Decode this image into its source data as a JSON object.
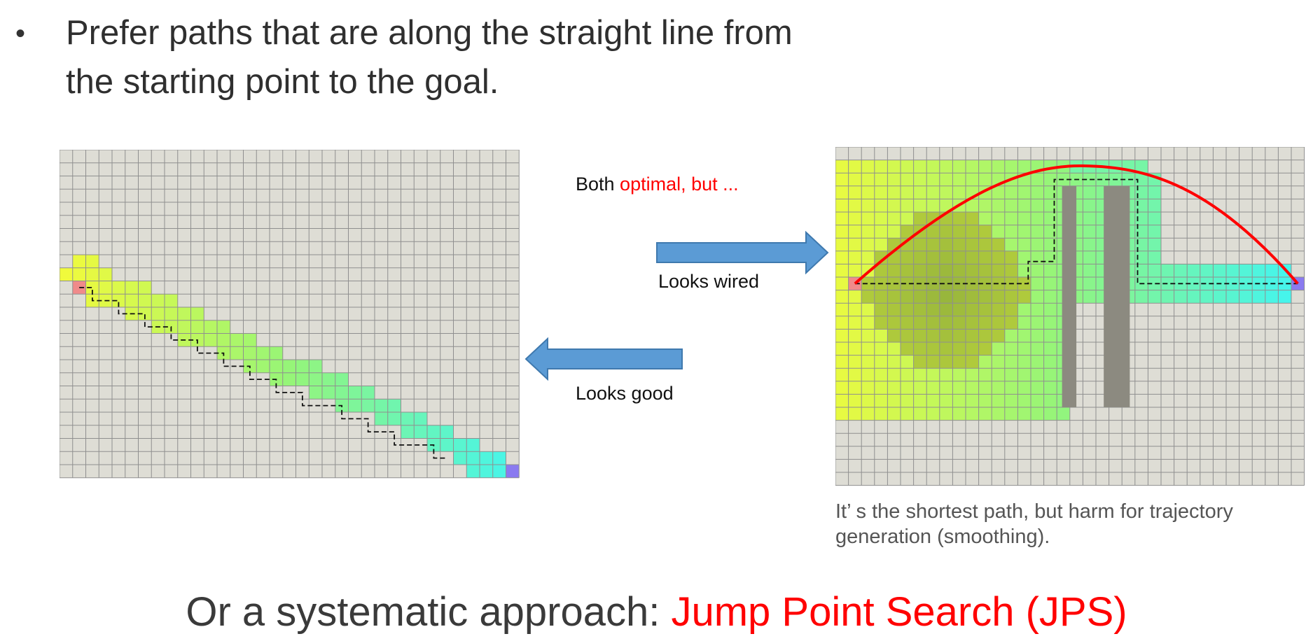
{
  "bullet": {
    "symbol": "•",
    "text_line1": "Prefer paths that are along the straight line from",
    "text_line2": "the starting point to the goal."
  },
  "center": {
    "label_prefix": "Both ",
    "label_red": "optimal, but ...",
    "right_arrow_label": "Looks wired",
    "left_arrow_label": "Looks good"
  },
  "caption": {
    "line1": "It’  s the shortest path, but harm for trajectory",
    "line2": "generation (smoothing)."
  },
  "bottom": {
    "prefix": "Or a systematic approach: ",
    "highlight": "Jump Point Search (JPS)"
  },
  "colors": {
    "grid_bg": "#deddd5",
    "grid_line": "#8f8f8f",
    "start": "#f08a8a",
    "goal": "#8a7af0",
    "obstacle": "#8c8a80",
    "arrow": "#5b9bd5",
    "smooth_path": "#ff0000",
    "highlight": "#ff0000"
  }
}
